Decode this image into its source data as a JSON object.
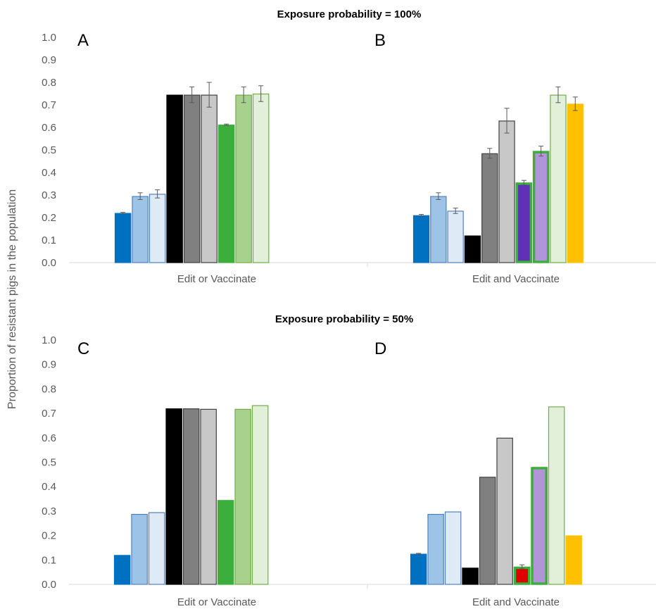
{
  "chart_data": [
    {
      "type": "bar",
      "panel_label": "A",
      "category": "Edit or Vaccinate",
      "ylabel": "Proportion of resistant pigs in the population",
      "ylim": [
        0,
        1.0
      ],
      "yticks": [
        "0.0",
        "0.1",
        "0.2",
        "0.3",
        "0.4",
        "0.5",
        "0.6",
        "0.7",
        "0.8",
        "0.9",
        "1.0"
      ],
      "bars": [
        {
          "value": 0.22,
          "err": 0.003,
          "fill": "#0070c0",
          "stroke": "#0070c0"
        },
        {
          "value": 0.295,
          "err": 0.015,
          "fill": "#9dc3e6",
          "stroke": "#4f81bd"
        },
        {
          "value": 0.305,
          "err": 0.018,
          "fill": "#deebf7",
          "stroke": "#4f81bd"
        },
        {
          "value": 0.745,
          "err": 0.0,
          "fill": "#000000",
          "stroke": "#000000"
        },
        {
          "value": 0.745,
          "err": 0.035,
          "fill": "#808080",
          "stroke": "#404040"
        },
        {
          "value": 0.745,
          "err": 0.055,
          "fill": "#c8c8c8",
          "stroke": "#404040"
        },
        {
          "value": 0.612,
          "err": 0.003,
          "fill": "#3cae3c",
          "stroke": "#3cae3c"
        },
        {
          "value": 0.745,
          "err": 0.035,
          "fill": "#a9d18e",
          "stroke": "#70ad47"
        },
        {
          "value": 0.75,
          "err": 0.035,
          "fill": "#e2f0d9",
          "stroke": "#70ad47"
        }
      ]
    },
    {
      "type": "bar",
      "panel_label": "B",
      "category": "Edit and Vaccinate",
      "ylim": [
        0,
        1.0
      ],
      "bars": [
        {
          "value": 0.21,
          "err": 0.004,
          "fill": "#0070c0",
          "stroke": "#0070c0"
        },
        {
          "value": 0.295,
          "err": 0.015,
          "fill": "#9dc3e6",
          "stroke": "#4f81bd"
        },
        {
          "value": 0.23,
          "err": 0.012,
          "fill": "#deebf7",
          "stroke": "#4f81bd"
        },
        {
          "value": 0.12,
          "err": 0.0,
          "fill": "#000000",
          "stroke": "#000000"
        },
        {
          "value": 0.485,
          "err": 0.022,
          "fill": "#808080",
          "stroke": "#404040"
        },
        {
          "value": 0.63,
          "err": 0.055,
          "fill": "#c8c8c8",
          "stroke": "#404040"
        },
        {
          "value": 0.355,
          "err": 0.01,
          "fill": "#6030b8",
          "stroke": "#3cae3c",
          "highlight": true
        },
        {
          "value": 0.495,
          "err": 0.022,
          "fill": "#b294d8",
          "stroke": "#3cae3c",
          "highlight": true
        },
        {
          "value": 0.745,
          "err": 0.035,
          "fill": "#e2f0d9",
          "stroke": "#70ad47"
        },
        {
          "value": 0.705,
          "err": 0.03,
          "fill": "#ffc000",
          "stroke": "#ffc000"
        }
      ]
    },
    {
      "type": "bar",
      "panel_label": "C",
      "category": "Edit or Vaccinate",
      "ylim": [
        0,
        1.0
      ],
      "yticks": [
        "0.0",
        "0.1",
        "0.2",
        "0.3",
        "0.4",
        "0.5",
        "0.6",
        "0.7",
        "0.8",
        "0.9",
        "1.0"
      ],
      "bars": [
        {
          "value": 0.12,
          "err": 0.0,
          "fill": "#0070c0",
          "stroke": "#0070c0"
        },
        {
          "value": 0.288,
          "err": 0.0,
          "fill": "#9dc3e6",
          "stroke": "#4f81bd"
        },
        {
          "value": 0.295,
          "err": 0.0,
          "fill": "#deebf7",
          "stroke": "#4f81bd"
        },
        {
          "value": 0.72,
          "err": 0.0,
          "fill": "#000000",
          "stroke": "#000000"
        },
        {
          "value": 0.72,
          "err": 0.0,
          "fill": "#808080",
          "stroke": "#404040"
        },
        {
          "value": 0.718,
          "err": 0.0,
          "fill": "#c8c8c8",
          "stroke": "#404040"
        },
        {
          "value": 0.345,
          "err": 0.0,
          "fill": "#3cae3c",
          "stroke": "#3cae3c"
        },
        {
          "value": 0.718,
          "err": 0.0,
          "fill": "#a9d18e",
          "stroke": "#70ad47"
        },
        {
          "value": 0.733,
          "err": 0.0,
          "fill": "#e2f0d9",
          "stroke": "#70ad47"
        }
      ]
    },
    {
      "type": "bar",
      "panel_label": "D",
      "category": "Edit and Vaccinate",
      "ylim": [
        0,
        1.0
      ],
      "bars": [
        {
          "value": 0.125,
          "err": 0.002,
          "fill": "#0070c0",
          "stroke": "#0070c0"
        },
        {
          "value": 0.288,
          "err": 0.0,
          "fill": "#9dc3e6",
          "stroke": "#4f81bd"
        },
        {
          "value": 0.298,
          "err": 0.0,
          "fill": "#deebf7",
          "stroke": "#4f81bd"
        },
        {
          "value": 0.068,
          "err": 0.0,
          "fill": "#000000",
          "stroke": "#000000"
        },
        {
          "value": 0.44,
          "err": 0.0,
          "fill": "#808080",
          "stroke": "#404040"
        },
        {
          "value": 0.6,
          "err": 0.0,
          "fill": "#c8c8c8",
          "stroke": "#404040"
        },
        {
          "value": 0.072,
          "err": 0.008,
          "fill": "#e00000",
          "stroke": "#3cae3c",
          "highlight": true
        },
        {
          "value": 0.48,
          "err": 0.0,
          "fill": "#b294d8",
          "stroke": "#3cae3c",
          "highlight": true
        },
        {
          "value": 0.728,
          "err": 0.0,
          "fill": "#e2f0d9",
          "stroke": "#70ad47"
        },
        {
          "value": 0.2,
          "err": 0.0,
          "fill": "#ffc000",
          "stroke": "#ffc000"
        }
      ]
    }
  ],
  "titles": {
    "top": "Exposure probability = 100%",
    "bottom": "Exposure probability = 50%"
  },
  "ylabel": "Proportion of resistant pigs in the population",
  "colors": {
    "axis_text": "#595959",
    "axis_line": "#d9d9d9",
    "error_bar": "#595959"
  }
}
